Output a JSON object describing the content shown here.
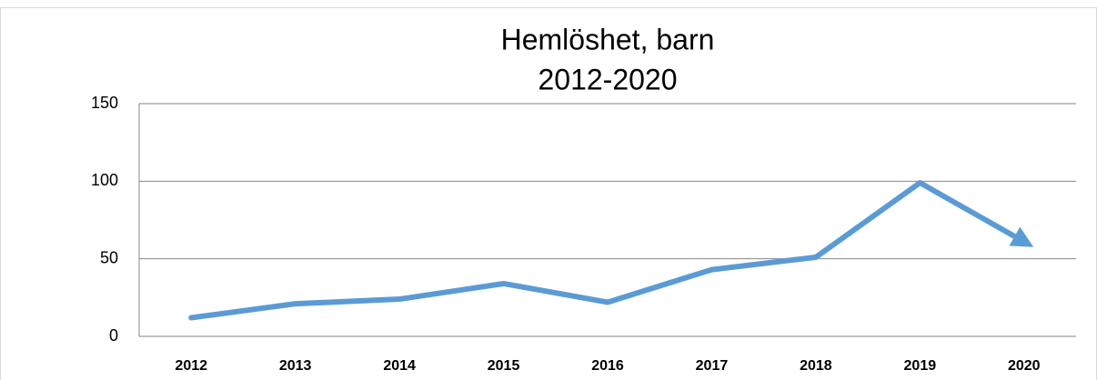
{
  "chart_data": {
    "type": "line",
    "title": "Hemlöshet, barn",
    "subtitle": "2012-2020",
    "categories": [
      "2012",
      "2013",
      "2014",
      "2015",
      "2016",
      "2017",
      "2018",
      "2019",
      "2020"
    ],
    "values": [
      12,
      21,
      24,
      34,
      22,
      43,
      51,
      99,
      61
    ],
    "color": "#5b9bd5",
    "ylim": [
      0,
      150
    ],
    "yticks": [
      0,
      50,
      100,
      150
    ],
    "grid": true,
    "end_arrow": true
  }
}
